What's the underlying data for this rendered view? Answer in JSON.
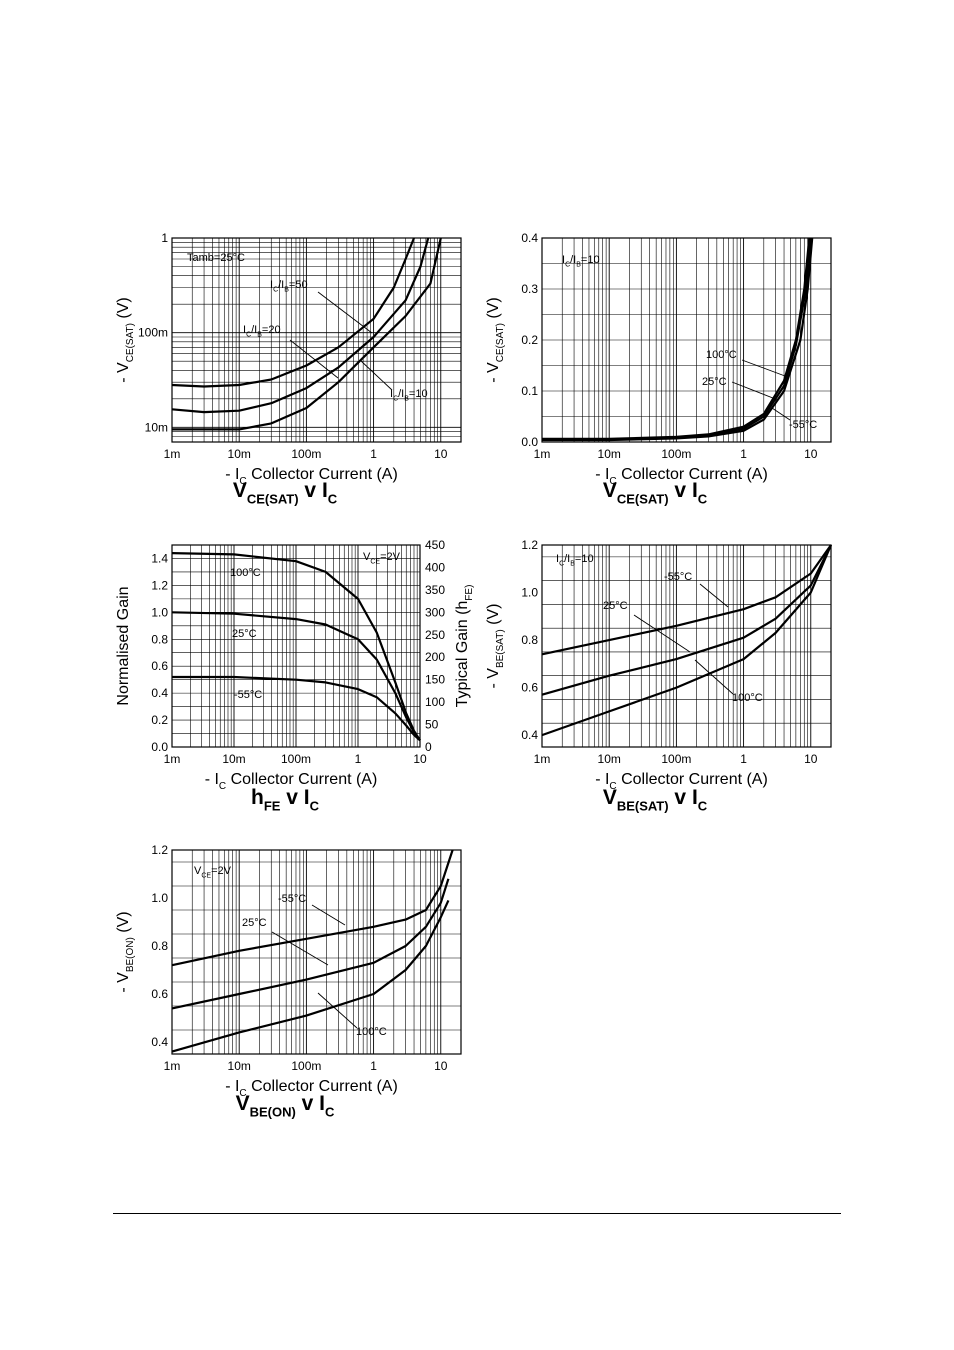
{
  "chart_data": [
    {
      "id": "vcesat-ic-gain",
      "type": "line",
      "x_scale": "log",
      "y_scale": "log",
      "xlim": [
        0.001,
        20
      ],
      "ylim": [
        0.007,
        1
      ],
      "x_ticks": [
        "1m",
        "10m",
        "100m",
        "1",
        "10"
      ],
      "y_ticks": [
        "10m",
        "100m",
        "1"
      ],
      "xlabel": "- I_C  Collector Current (A)",
      "ylabel": "- V_CE(SAT)  (V)",
      "title": "V_CE(SAT) v I_C",
      "annotations": [
        "Tamb=25°C",
        "I_C/I_B=50",
        "I_C/I_B=20",
        "I_C/I_B=10"
      ],
      "series": [
        {
          "name": "I_C/I_B=50",
          "x": [
            0.001,
            0.003,
            0.01,
            0.03,
            0.1,
            0.3,
            1,
            2,
            3,
            4
          ],
          "y": [
            0.028,
            0.027,
            0.028,
            0.032,
            0.045,
            0.07,
            0.14,
            0.3,
            0.6,
            1.0
          ]
        },
        {
          "name": "I_C/I_B=20",
          "x": [
            0.001,
            0.003,
            0.01,
            0.03,
            0.1,
            0.3,
            1,
            3,
            5,
            6.5
          ],
          "y": [
            0.0155,
            0.0145,
            0.015,
            0.018,
            0.026,
            0.043,
            0.09,
            0.22,
            0.5,
            1.0
          ]
        },
        {
          "name": "I_C/I_B=10",
          "x": [
            0.001,
            0.003,
            0.01,
            0.03,
            0.1,
            0.3,
            1,
            3,
            7,
            10
          ],
          "y": [
            0.0095,
            0.0095,
            0.0095,
            0.011,
            0.016,
            0.03,
            0.07,
            0.15,
            0.33,
            1.0
          ]
        }
      ]
    },
    {
      "id": "vcesat-ic-temp",
      "type": "line",
      "x_scale": "log",
      "y_scale": "linear",
      "xlim": [
        0.001,
        20
      ],
      "ylim": [
        0,
        0.4
      ],
      "x_ticks": [
        "1m",
        "10m",
        "100m",
        "1",
        "10"
      ],
      "y_ticks": [
        "0.0",
        "0.1",
        "0.2",
        "0.3",
        "0.4"
      ],
      "xlabel": "- I_C  Collector Current (A)",
      "ylabel": "- V_CE(SAT)  (V)",
      "title": "V_CE(SAT) v I_C",
      "annotations": [
        "I_C/I_B=10",
        "100°C",
        "25°C",
        "-55°C"
      ],
      "series": [
        {
          "name": "100°C",
          "x": [
            0.001,
            0.01,
            0.1,
            0.3,
            1,
            2,
            4,
            6,
            8,
            9.5
          ],
          "y": [
            0.006,
            0.006,
            0.01,
            0.015,
            0.03,
            0.055,
            0.12,
            0.2,
            0.3,
            0.4
          ]
        },
        {
          "name": "25°C",
          "x": [
            0.001,
            0.01,
            0.1,
            0.3,
            1,
            2,
            4,
            6,
            8.5,
            10
          ],
          "y": [
            0.005,
            0.005,
            0.009,
            0.013,
            0.026,
            0.05,
            0.11,
            0.19,
            0.3,
            0.4
          ]
        },
        {
          "name": "-55°C",
          "x": [
            0.001,
            0.01,
            0.1,
            0.3,
            1,
            2,
            4,
            7,
            9,
            10.5
          ],
          "y": [
            0.004,
            0.004,
            0.007,
            0.011,
            0.022,
            0.044,
            0.1,
            0.2,
            0.3,
            0.4
          ]
        }
      ]
    },
    {
      "id": "hfe-ic",
      "type": "line",
      "x_scale": "log",
      "y_scale": "linear",
      "xlim": [
        0.001,
        10
      ],
      "ylim": [
        0,
        1.5
      ],
      "y2lim": [
        0,
        450
      ],
      "x_ticks": [
        "1m",
        "10m",
        "100m",
        "1",
        "10"
      ],
      "y_ticks": [
        "0.0",
        "0.2",
        "0.4",
        "0.6",
        "0.8",
        "1.0",
        "1.2",
        "1.4"
      ],
      "y2_ticks": [
        "0",
        "50",
        "100",
        "150",
        "200",
        "250",
        "300",
        "350",
        "400",
        "450"
      ],
      "xlabel": "- I_C  Collector Current (A)",
      "ylabel": "Normalised Gain",
      "y2label": "Typical Gain (h_FE)",
      "title": "h_FE v I_C",
      "annotations": [
        "V_CE=2V",
        "100°C",
        "25°C",
        "-55°C"
      ],
      "series": [
        {
          "name": "100°C",
          "x": [
            0.001,
            0.01,
            0.1,
            0.3,
            1,
            2,
            4,
            6,
            8,
            10
          ],
          "y": [
            1.44,
            1.43,
            1.38,
            1.3,
            1.1,
            0.85,
            0.48,
            0.25,
            0.12,
            0.05
          ]
        },
        {
          "name": "25°C",
          "x": [
            0.001,
            0.01,
            0.1,
            0.3,
            1,
            2,
            4,
            6,
            8,
            10
          ],
          "y": [
            1.0,
            0.99,
            0.95,
            0.91,
            0.8,
            0.65,
            0.4,
            0.22,
            0.11,
            0.05
          ]
        },
        {
          "name": "-55°C",
          "x": [
            0.001,
            0.01,
            0.1,
            0.3,
            1,
            2,
            4,
            6,
            8,
            10
          ],
          "y": [
            0.52,
            0.52,
            0.5,
            0.48,
            0.43,
            0.37,
            0.25,
            0.16,
            0.09,
            0.05
          ]
        }
      ]
    },
    {
      "id": "vbesat-ic",
      "type": "line",
      "x_scale": "log",
      "y_scale": "linear",
      "xlim": [
        0.001,
        20
      ],
      "ylim": [
        0.35,
        1.2
      ],
      "x_ticks": [
        "1m",
        "10m",
        "100m",
        "1",
        "10"
      ],
      "y_ticks": [
        "0.4",
        "0.6",
        "0.8",
        "1.0",
        "1.2"
      ],
      "xlabel": "- I_C  Collector Current (A)",
      "ylabel": "- V_BE(SAT)  (V)",
      "title": "V_BE(SAT) v I_C",
      "annotations": [
        "I_C/I_B=10",
        "-55°C",
        "25°C",
        "100°C"
      ],
      "series": [
        {
          "name": "-55°C",
          "x": [
            0.001,
            0.01,
            0.1,
            1,
            3,
            10,
            20
          ],
          "y": [
            0.74,
            0.8,
            0.86,
            0.93,
            0.98,
            1.08,
            1.2
          ]
        },
        {
          "name": "25°C",
          "x": [
            0.001,
            0.01,
            0.1,
            1,
            3,
            10,
            20
          ],
          "y": [
            0.57,
            0.65,
            0.72,
            0.81,
            0.89,
            1.03,
            1.2
          ]
        },
        {
          "name": "100°C",
          "x": [
            0.001,
            0.01,
            0.1,
            1,
            3,
            10,
            20
          ],
          "y": [
            0.4,
            0.5,
            0.6,
            0.72,
            0.83,
            1.0,
            1.2
          ]
        }
      ]
    },
    {
      "id": "vbeon-ic",
      "type": "line",
      "x_scale": "log",
      "y_scale": "linear",
      "xlim": [
        0.001,
        20
      ],
      "ylim": [
        0.35,
        1.2
      ],
      "x_ticks": [
        "1m",
        "10m",
        "100m",
        "1",
        "10"
      ],
      "y_ticks": [
        "0.4",
        "0.6",
        "0.8",
        "1.0",
        "1.2"
      ],
      "xlabel": "- I_C  Collector Current (A)",
      "ylabel": "- V_BE(ON)  (V)",
      "title": "V_BE(ON) v I_C",
      "annotations": [
        "V_CE=2V",
        "-55°C",
        "25°C",
        "100°C"
      ],
      "series": [
        {
          "name": "-55°C",
          "x": [
            0.001,
            0.01,
            0.1,
            1,
            3,
            6,
            10,
            15
          ],
          "y": [
            0.72,
            0.78,
            0.83,
            0.88,
            0.91,
            0.95,
            1.05,
            1.2
          ]
        },
        {
          "name": "25°C",
          "x": [
            0.001,
            0.01,
            0.1,
            1,
            3,
            6,
            10,
            13
          ],
          "y": [
            0.54,
            0.6,
            0.66,
            0.73,
            0.8,
            0.88,
            0.98,
            1.08
          ]
        },
        {
          "name": "100°C",
          "x": [
            0.001,
            0.01,
            0.1,
            1,
            3,
            6,
            10,
            13
          ],
          "y": [
            0.36,
            0.44,
            0.51,
            0.6,
            0.7,
            0.8,
            0.92,
            0.99
          ]
        }
      ]
    }
  ]
}
